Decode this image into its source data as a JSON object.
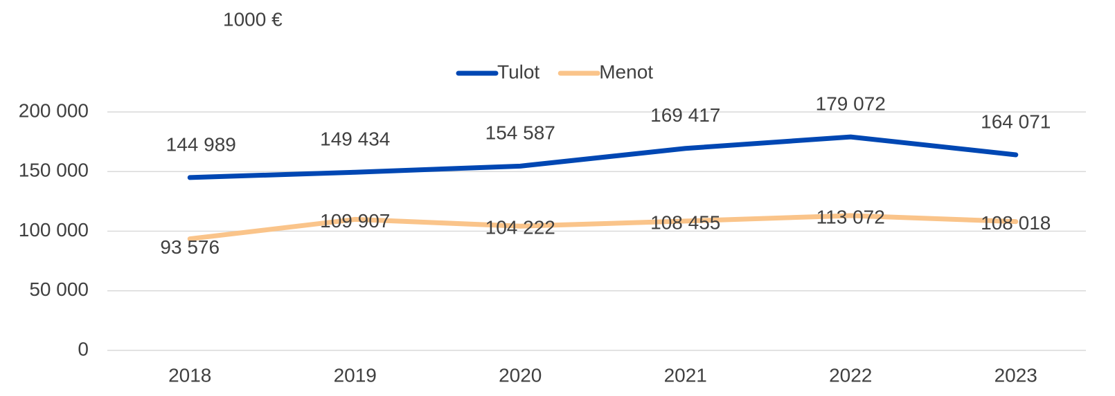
{
  "chart_data": {
    "type": "line",
    "subtitle": "1000 €",
    "categories": [
      "2018",
      "2019",
      "2020",
      "2021",
      "2022",
      "2023"
    ],
    "series": [
      {
        "name": "Tulot",
        "color": "#0047b3",
        "values": [
          144989,
          149434,
          154587,
          169417,
          179072,
          164071
        ],
        "value_labels": [
          "144 989",
          "149 434",
          "154 587",
          "169 417",
          "179 072",
          "164 071"
        ]
      },
      {
        "name": "Menot",
        "color": "#fac48a",
        "values": [
          93576,
          109907,
          104222,
          108455,
          113072,
          108018
        ],
        "value_labels": [
          "93 576",
          "109 907",
          "104 222",
          "108 455",
          "113 072",
          "108 018"
        ]
      }
    ],
    "ylim": [
      0,
      200000
    ],
    "yticks": [
      {
        "value": 0,
        "label": "0"
      },
      {
        "value": 50000,
        "label": "50 000"
      },
      {
        "value": 100000,
        "label": "100 000"
      },
      {
        "value": 150000,
        "label": "150 000"
      },
      {
        "value": 200000,
        "label": "200 000"
      }
    ],
    "grid": true,
    "legend": "top"
  }
}
